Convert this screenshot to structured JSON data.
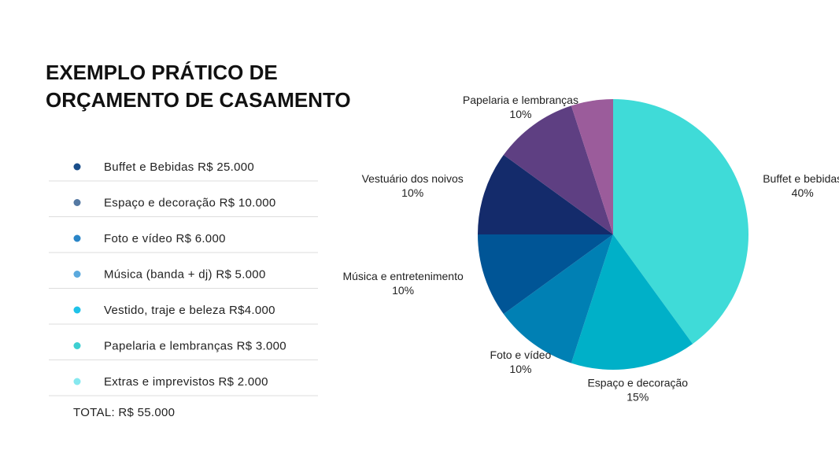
{
  "title_lines": [
    "EXEMPLO PRÁTICO DE",
    "ORÇAMENTO DE CASAMENTO"
  ],
  "budget_list": {
    "items": [
      {
        "text": "Buffet e Bebidas R$ 25.000",
        "color": "#1a4e8a"
      },
      {
        "text": "Espaço e decoração  R$ 10.000",
        "color": "#5579a3"
      },
      {
        "text": "Foto e vídeo R$ 6.000",
        "color": "#2a85c7"
      },
      {
        "text": "Música (banda + dj) R$ 5.000",
        "color": "#5ba9dd"
      },
      {
        "text": "Vestido, traje e beleza R$4.000",
        "color": "#1fc2e8"
      },
      {
        "text": "Papelaria e lembranças R$ 3.000",
        "color": "#3ecfd1"
      },
      {
        "text": "Extras e imprevistos  R$ 2.000",
        "color": "#86e8ef"
      }
    ],
    "total": "TOTAL:  R$  55.000"
  },
  "chart_data": {
    "type": "pie",
    "categories": [
      "Buffet e bebidas",
      "Espaço e decoração",
      "Foto e vídeo",
      "Música e entretenimento",
      "Vestuário dos noivos",
      "Papelaria e lembranças",
      null
    ],
    "values": [
      40,
      15,
      10,
      10,
      10,
      10,
      5
    ],
    "value_labels": [
      "40%",
      "15%",
      "10%",
      "10%",
      "10%",
      "10%",
      null
    ],
    "colors": [
      "#3fdbd8",
      "#00b0c8",
      "#0080b4",
      "#005596",
      "#142b6b",
      "#5e3f82",
      "#9b5c9b"
    ]
  }
}
